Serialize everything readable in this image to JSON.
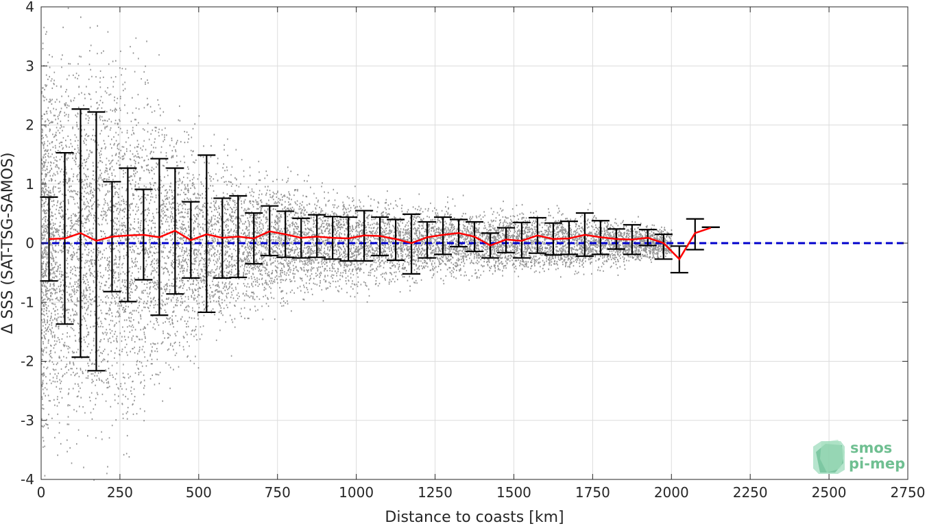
{
  "chart_data": {
    "type": "scatter",
    "xlabel": "Distance to coasts [km]",
    "ylabel": "Δ SSS (SAT-TSG-SAMOS)",
    "xlim": [
      0,
      2750
    ],
    "ylim": [
      -4,
      4
    ],
    "xticks": [
      0,
      250,
      500,
      750,
      1000,
      1250,
      1500,
      1750,
      2000,
      2250,
      2500,
      2750
    ],
    "yticks": [
      -4,
      -3,
      -2,
      -1,
      0,
      1,
      2,
      3,
      4
    ],
    "grid": true,
    "colors": {
      "scatter": "#808080",
      "mean_line": "#ff0000",
      "zero_line": "#0000cc",
      "errorbar": "#000000"
    },
    "reference_line": {
      "y": 0,
      "style": "dashed"
    },
    "series": [
      {
        "kind": "mean_with_errorbars",
        "x": [
          25,
          75,
          125,
          175,
          225,
          275,
          325,
          375,
          425,
          475,
          525,
          575,
          625,
          675,
          725,
          775,
          825,
          875,
          925,
          975,
          1025,
          1075,
          1125,
          1175,
          1225,
          1275,
          1325,
          1375,
          1425,
          1475,
          1525,
          1575,
          1625,
          1675,
          1725,
          1775,
          1825,
          1875,
          1925,
          1975,
          2025,
          2075,
          2125
        ],
        "mean": [
          0.07,
          0.08,
          0.17,
          0.04,
          0.11,
          0.13,
          0.14,
          0.1,
          0.21,
          0.05,
          0.15,
          0.09,
          0.11,
          0.08,
          0.2,
          0.15,
          0.09,
          0.11,
          0.09,
          0.08,
          0.13,
          0.12,
          0.07,
          0.0,
          0.1,
          0.14,
          0.17,
          0.11,
          -0.04,
          0.06,
          0.04,
          0.13,
          0.07,
          0.08,
          0.14,
          0.1,
          0.07,
          0.06,
          0.09,
          0.0,
          -0.27,
          0.17,
          0.26
        ],
        "upper": [
          0.78,
          1.53,
          2.27,
          2.22,
          1.04,
          1.27,
          0.91,
          1.43,
          1.27,
          0.7,
          1.49,
          0.76,
          0.8,
          0.51,
          0.63,
          0.54,
          0.42,
          0.48,
          0.45,
          0.44,
          0.55,
          0.44,
          0.4,
          0.49,
          0.36,
          0.44,
          0.4,
          0.36,
          0.17,
          0.26,
          0.35,
          0.43,
          0.34,
          0.37,
          0.51,
          0.38,
          0.24,
          0.31,
          0.23,
          0.15,
          -0.05,
          0.41,
          0.27
        ],
        "lower": [
          -0.64,
          -1.37,
          -1.93,
          -2.16,
          -0.82,
          -0.99,
          -0.62,
          -1.22,
          -0.86,
          -0.59,
          -1.17,
          -0.59,
          -0.58,
          -0.35,
          -0.21,
          -0.24,
          -0.25,
          -0.24,
          -0.27,
          -0.3,
          -0.3,
          -0.21,
          -0.29,
          -0.52,
          -0.25,
          -0.19,
          -0.06,
          -0.14,
          -0.25,
          -0.16,
          -0.25,
          -0.17,
          -0.2,
          -0.19,
          -0.22,
          -0.19,
          -0.1,
          -0.19,
          -0.04,
          -0.27,
          -0.5,
          -0.11,
          0.27
        ]
      },
      {
        "kind": "scatter_cloud",
        "spread_by_distance": [
          {
            "x": 0,
            "lo": -4.0,
            "hi": 4.0
          },
          {
            "x": 250,
            "lo": -4.0,
            "hi": 4.0
          },
          {
            "x": 500,
            "lo": -2.0,
            "hi": 2.0
          },
          {
            "x": 700,
            "lo": -1.2,
            "hi": 1.5
          },
          {
            "x": 1000,
            "lo": -0.8,
            "hi": 1.1
          },
          {
            "x": 1250,
            "lo": -0.6,
            "hi": 0.9
          },
          {
            "x": 1500,
            "lo": -0.5,
            "hi": 0.8
          },
          {
            "x": 1750,
            "lo": -0.45,
            "hi": 0.75
          },
          {
            "x": 2000,
            "lo": -0.3,
            "hi": 0.3
          }
        ]
      }
    ]
  },
  "logo": {
    "line1": "smos",
    "line2": "pi-mep"
  }
}
